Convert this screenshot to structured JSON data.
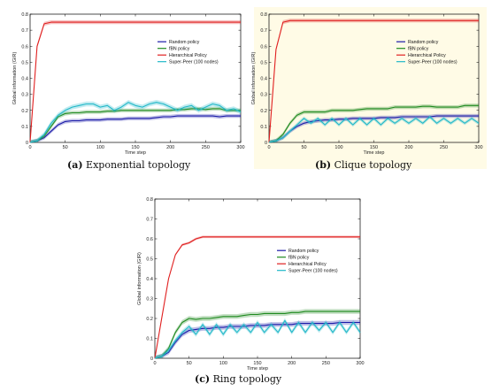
{
  "colors": {
    "random": "#1a1aa8",
    "fbn": "#1f8a1f",
    "hierarchical": "#e02020",
    "superpeer": "#20b8c8",
    "panel_b_background": "#fffbe6"
  },
  "captions": [
    {
      "label": "(a)",
      "text": "Exponential topology"
    },
    {
      "label": "(b)",
      "text": "Clique topology"
    },
    {
      "label": "(c)",
      "text": "Ring topology"
    }
  ],
  "chart_data": [
    {
      "type": "line",
      "panel": "a",
      "title": "",
      "xlabel": "Time step",
      "ylabel": "Global information (GIR)",
      "xlim": [
        0,
        300
      ],
      "ylim": [
        0,
        0.8
      ],
      "xticks": [
        0,
        50,
        100,
        150,
        200,
        250,
        300
      ],
      "yticks": [
        0,
        0.1,
        0.2,
        0.3,
        0.4,
        0.5,
        0.6,
        0.7,
        0.8
      ],
      "legend_position": "right-middle",
      "x": [
        0,
        10,
        20,
        30,
        40,
        50,
        60,
        70,
        80,
        90,
        100,
        110,
        120,
        130,
        140,
        150,
        160,
        170,
        180,
        190,
        200,
        210,
        220,
        230,
        240,
        250,
        260,
        270,
        280,
        290,
        300
      ],
      "series": [
        {
          "name": "Random policy",
          "color_key": "random",
          "band": 0.012,
          "values": [
            0,
            0.01,
            0.03,
            0.07,
            0.11,
            0.13,
            0.135,
            0.135,
            0.14,
            0.14,
            0.14,
            0.145,
            0.145,
            0.145,
            0.15,
            0.15,
            0.15,
            0.15,
            0.155,
            0.16,
            0.16,
            0.165,
            0.165,
            0.165,
            0.165,
            0.165,
            0.165,
            0.16,
            0.165,
            0.165,
            0.165
          ]
        },
        {
          "name": "fBN policy",
          "color_key": "fbn",
          "band": 0.012,
          "values": [
            0,
            0.01,
            0.04,
            0.1,
            0.16,
            0.18,
            0.185,
            0.185,
            0.19,
            0.19,
            0.19,
            0.195,
            0.195,
            0.2,
            0.2,
            0.2,
            0.2,
            0.2,
            0.2,
            0.2,
            0.2,
            0.205,
            0.205,
            0.21,
            0.21,
            0.205,
            0.21,
            0.21,
            0.2,
            0.2,
            0.2
          ]
        },
        {
          "name": "Hierarchical Policy",
          "color_key": "hierarchical",
          "band": 0.012,
          "values": [
            0,
            0.6,
            0.74,
            0.75,
            0.75,
            0.75,
            0.75,
            0.75,
            0.75,
            0.75,
            0.75,
            0.75,
            0.75,
            0.75,
            0.75,
            0.75,
            0.75,
            0.75,
            0.75,
            0.75,
            0.75,
            0.75,
            0.75,
            0.75,
            0.75,
            0.75,
            0.75,
            0.75,
            0.75,
            0.75,
            0.75
          ]
        },
        {
          "name": "Super-Peer (100 nodes)",
          "color_key": "superpeer",
          "band": 0.015,
          "values": [
            0,
            0.01,
            0.05,
            0.12,
            0.17,
            0.2,
            0.22,
            0.23,
            0.24,
            0.24,
            0.22,
            0.23,
            0.2,
            0.22,
            0.25,
            0.23,
            0.22,
            0.24,
            0.25,
            0.24,
            0.22,
            0.2,
            0.22,
            0.23,
            0.2,
            0.22,
            0.24,
            0.23,
            0.2,
            0.21,
            0.19
          ]
        }
      ]
    },
    {
      "type": "line",
      "panel": "b",
      "title": "",
      "xlabel": "Time step",
      "ylabel": "Global information (GIR)",
      "xlim": [
        0,
        300
      ],
      "ylim": [
        0,
        0.8
      ],
      "xticks": [
        0,
        50,
        100,
        150,
        200,
        250,
        300
      ],
      "yticks": [
        0,
        0.1,
        0.2,
        0.3,
        0.4,
        0.5,
        0.6,
        0.7,
        0.8
      ],
      "legend_position": "right-middle",
      "x": [
        0,
        10,
        20,
        30,
        40,
        50,
        60,
        70,
        80,
        90,
        100,
        110,
        120,
        130,
        140,
        150,
        160,
        170,
        180,
        190,
        200,
        210,
        220,
        230,
        240,
        250,
        260,
        270,
        280,
        290,
        300
      ],
      "series": [
        {
          "name": "Random policy",
          "color_key": "random",
          "band": 0.012,
          "values": [
            0,
            0.01,
            0.03,
            0.07,
            0.1,
            0.12,
            0.13,
            0.135,
            0.14,
            0.14,
            0.145,
            0.145,
            0.15,
            0.15,
            0.15,
            0.15,
            0.155,
            0.155,
            0.155,
            0.16,
            0.16,
            0.16,
            0.16,
            0.16,
            0.165,
            0.165,
            0.165,
            0.165,
            0.165,
            0.165,
            0.165
          ]
        },
        {
          "name": "fBN policy",
          "color_key": "fbn",
          "band": 0.012,
          "values": [
            0,
            0.01,
            0.05,
            0.12,
            0.17,
            0.19,
            0.19,
            0.19,
            0.19,
            0.2,
            0.2,
            0.2,
            0.2,
            0.205,
            0.21,
            0.21,
            0.21,
            0.21,
            0.22,
            0.22,
            0.22,
            0.22,
            0.225,
            0.225,
            0.22,
            0.22,
            0.22,
            0.22,
            0.23,
            0.23,
            0.23
          ]
        },
        {
          "name": "Hierarchical Policy",
          "color_key": "hierarchical",
          "band": 0.012,
          "values": [
            0,
            0.58,
            0.75,
            0.76,
            0.76,
            0.76,
            0.76,
            0.76,
            0.76,
            0.76,
            0.76,
            0.76,
            0.76,
            0.76,
            0.76,
            0.76,
            0.76,
            0.76,
            0.76,
            0.76,
            0.76,
            0.76,
            0.76,
            0.76,
            0.76,
            0.76,
            0.76,
            0.76,
            0.76,
            0.76,
            0.76
          ]
        },
        {
          "name": "Super-Peer (100 nodes)",
          "color_key": "superpeer",
          "band": 0.012,
          "values": [
            0,
            0.01,
            0.03,
            0.07,
            0.11,
            0.15,
            0.12,
            0.15,
            0.11,
            0.15,
            0.11,
            0.15,
            0.11,
            0.15,
            0.11,
            0.15,
            0.11,
            0.15,
            0.12,
            0.15,
            0.12,
            0.15,
            0.12,
            0.16,
            0.12,
            0.15,
            0.12,
            0.15,
            0.12,
            0.15,
            0.12
          ]
        }
      ]
    },
    {
      "type": "line",
      "panel": "c",
      "title": "",
      "xlabel": "Time step",
      "ylabel": "Global information (GIR)",
      "xlim": [
        0,
        300
      ],
      "ylim": [
        0,
        0.8
      ],
      "xticks": [
        0,
        50,
        100,
        150,
        200,
        250,
        300
      ],
      "yticks": [
        0,
        0.1,
        0.2,
        0.3,
        0.4,
        0.5,
        0.6,
        0.7,
        0.8
      ],
      "legend_position": "right-middle",
      "x": [
        0,
        10,
        20,
        30,
        40,
        50,
        60,
        70,
        80,
        90,
        100,
        110,
        120,
        130,
        140,
        150,
        160,
        170,
        180,
        190,
        200,
        210,
        220,
        230,
        240,
        250,
        260,
        270,
        280,
        290,
        300
      ],
      "series": [
        {
          "name": "Random policy",
          "color_key": "random",
          "band": 0.012,
          "values": [
            0,
            0.01,
            0.03,
            0.08,
            0.12,
            0.14,
            0.145,
            0.15,
            0.15,
            0.155,
            0.155,
            0.16,
            0.16,
            0.16,
            0.165,
            0.165,
            0.165,
            0.17,
            0.17,
            0.17,
            0.17,
            0.175,
            0.175,
            0.175,
            0.175,
            0.175,
            0.175,
            0.18,
            0.18,
            0.18,
            0.18
          ]
        },
        {
          "name": "fBN policy",
          "color_key": "fbn",
          "band": 0.012,
          "values": [
            0,
            0.01,
            0.05,
            0.13,
            0.18,
            0.2,
            0.195,
            0.2,
            0.2,
            0.205,
            0.21,
            0.21,
            0.21,
            0.215,
            0.22,
            0.22,
            0.225,
            0.225,
            0.225,
            0.225,
            0.23,
            0.23,
            0.235,
            0.235,
            0.235,
            0.235,
            0.235,
            0.235,
            0.235,
            0.235,
            0.235
          ]
        },
        {
          "name": "Hierarchical Policy",
          "color_key": "hierarchical",
          "band": 0.006,
          "values": [
            0,
            0.2,
            0.4,
            0.52,
            0.57,
            0.58,
            0.6,
            0.61,
            0.61,
            0.61,
            0.61,
            0.61,
            0.61,
            0.61,
            0.61,
            0.61,
            0.61,
            0.61,
            0.61,
            0.61,
            0.61,
            0.61,
            0.61,
            0.61,
            0.61,
            0.61,
            0.61,
            0.61,
            0.61,
            0.61,
            0.61
          ]
        },
        {
          "name": "Super-Peer (100 nodes)",
          "color_key": "superpeer",
          "band": 0.012,
          "values": [
            0,
            0.01,
            0.04,
            0.09,
            0.13,
            0.16,
            0.12,
            0.17,
            0.12,
            0.17,
            0.12,
            0.17,
            0.13,
            0.17,
            0.13,
            0.18,
            0.13,
            0.17,
            0.13,
            0.19,
            0.13,
            0.18,
            0.13,
            0.18,
            0.14,
            0.18,
            0.13,
            0.18,
            0.13,
            0.18,
            0.13
          ]
        }
      ]
    }
  ]
}
